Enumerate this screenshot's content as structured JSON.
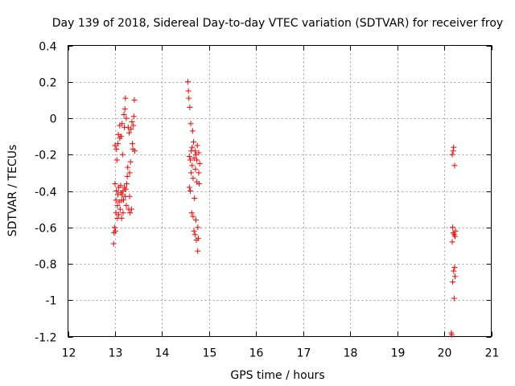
{
  "chart_data": {
    "type": "scatter",
    "title": "Day 139 of 2018, Sidereal Day-to-day VTEC variation (SDTVAR) for receiver froy",
    "xlabel": "GPS time / hours",
    "ylabel": "SDTVAR / TECUs",
    "xlim": [
      12,
      21
    ],
    "ylim": [
      -1.2,
      0.4
    ],
    "xticks": [
      12,
      13,
      14,
      15,
      16,
      17,
      18,
      19,
      20,
      21
    ],
    "xtick_labels": [
      "12",
      "13",
      "14",
      "15",
      "16",
      "17",
      "18",
      "19",
      "20",
      "21"
    ],
    "yticks": [
      0.4,
      0.2,
      0,
      -0.2,
      -0.4,
      -0.6,
      -0.8,
      -1,
      -1.2
    ],
    "ytick_labels": [
      "0.4",
      "0.2",
      "0",
      "-0.2",
      "-0.4",
      "-0.6",
      "-0.8",
      "-1",
      "-1.2"
    ],
    "grid": true,
    "marker": "+",
    "color": "#ff0000",
    "series": [
      {
        "name": "SDTVAR",
        "points": [
          [
            12.97,
            -0.69
          ],
          [
            12.98,
            -0.63
          ],
          [
            12.99,
            -0.6
          ],
          [
            13.0,
            -0.36
          ],
          [
            13.0,
            -0.15
          ],
          [
            13.01,
            -0.62
          ],
          [
            13.02,
            -0.52
          ],
          [
            13.02,
            -0.45
          ],
          [
            13.03,
            -0.4
          ],
          [
            13.03,
            -0.17
          ],
          [
            13.04,
            -0.23
          ],
          [
            13.05,
            -0.55
          ],
          [
            13.05,
            -0.48
          ],
          [
            13.06,
            -0.42
          ],
          [
            13.06,
            -0.14
          ],
          [
            13.07,
            -0.09
          ],
          [
            13.08,
            -0.53
          ],
          [
            13.08,
            -0.38
          ],
          [
            13.09,
            -0.46
          ],
          [
            13.1,
            -0.04
          ],
          [
            13.1,
            -0.11
          ],
          [
            13.11,
            -0.5
          ],
          [
            13.12,
            -0.41
          ],
          [
            13.12,
            -0.37
          ],
          [
            13.13,
            -0.1
          ],
          [
            13.14,
            -0.55
          ],
          [
            13.14,
            -0.45
          ],
          [
            13.15,
            -0.42
          ],
          [
            13.15,
            -0.03
          ],
          [
            13.16,
            -0.2
          ],
          [
            13.17,
            -0.52
          ],
          [
            13.17,
            -0.4
          ],
          [
            13.18,
            -0.45
          ],
          [
            13.19,
            0.02
          ],
          [
            13.2,
            -0.05
          ],
          [
            13.2,
            -0.38
          ],
          [
            13.21,
            0.05
          ],
          [
            13.22,
            0.11
          ],
          [
            13.22,
            -0.43
          ],
          [
            13.23,
            -0.39
          ],
          [
            13.24,
            0.0
          ],
          [
            13.24,
            -0.48
          ],
          [
            13.25,
            -0.36
          ],
          [
            13.26,
            -0.32
          ],
          [
            13.27,
            -0.27
          ],
          [
            13.28,
            -0.05
          ],
          [
            13.29,
            -0.5
          ],
          [
            13.3,
            -0.08
          ],
          [
            13.31,
            -0.3
          ],
          [
            13.31,
            -0.43
          ],
          [
            13.32,
            -0.52
          ],
          [
            13.33,
            -0.24
          ],
          [
            13.34,
            -0.06
          ],
          [
            13.35,
            -0.5
          ],
          [
            13.36,
            -0.02
          ],
          [
            13.37,
            -0.14
          ],
          [
            13.38,
            -0.17
          ],
          [
            13.39,
            -0.04
          ],
          [
            13.4,
            0.01
          ],
          [
            13.41,
            0.1
          ],
          [
            13.42,
            -0.18
          ],
          [
            14.55,
            0.2
          ],
          [
            14.56,
            0.15
          ],
          [
            14.57,
            0.11
          ],
          [
            14.58,
            -0.21
          ],
          [
            14.58,
            -0.38
          ],
          [
            14.59,
            0.06
          ],
          [
            14.6,
            -0.23
          ],
          [
            14.6,
            -0.4
          ],
          [
            14.61,
            -0.03
          ],
          [
            14.62,
            -0.18
          ],
          [
            14.62,
            -0.3
          ],
          [
            14.63,
            -0.52
          ],
          [
            14.64,
            -0.16
          ],
          [
            14.64,
            -0.26
          ],
          [
            14.65,
            -0.07
          ],
          [
            14.66,
            -0.54
          ],
          [
            14.66,
            -0.33
          ],
          [
            14.67,
            -0.13
          ],
          [
            14.68,
            -0.62
          ],
          [
            14.68,
            -0.22
          ],
          [
            14.69,
            -0.44
          ],
          [
            14.7,
            -0.18
          ],
          [
            14.7,
            -0.64
          ],
          [
            14.71,
            -0.28
          ],
          [
            14.72,
            -0.2
          ],
          [
            14.72,
            -0.56
          ],
          [
            14.73,
            -0.67
          ],
          [
            14.74,
            -0.35
          ],
          [
            14.74,
            -0.23
          ],
          [
            14.75,
            -0.15
          ],
          [
            14.76,
            -0.73
          ],
          [
            14.76,
            -0.6
          ],
          [
            14.77,
            -0.66
          ],
          [
            14.78,
            -0.3
          ],
          [
            14.78,
            -0.19
          ],
          [
            14.79,
            -0.36
          ],
          [
            14.8,
            -0.25
          ],
          [
            20.15,
            -1.18
          ],
          [
            20.16,
            -1.19
          ],
          [
            20.17,
            -0.68
          ],
          [
            20.17,
            -0.2
          ],
          [
            20.18,
            -0.6
          ],
          [
            20.18,
            -0.9
          ],
          [
            20.19,
            -0.18
          ],
          [
            20.19,
            -0.63
          ],
          [
            20.2,
            -0.84
          ],
          [
            20.2,
            -0.16
          ],
          [
            20.21,
            -0.64
          ],
          [
            20.21,
            -0.99
          ],
          [
            20.22,
            -0.26
          ],
          [
            20.22,
            -0.82
          ],
          [
            20.23,
            -0.87
          ],
          [
            20.23,
            -0.65
          ],
          [
            20.24,
            -0.62
          ]
        ]
      }
    ]
  }
}
